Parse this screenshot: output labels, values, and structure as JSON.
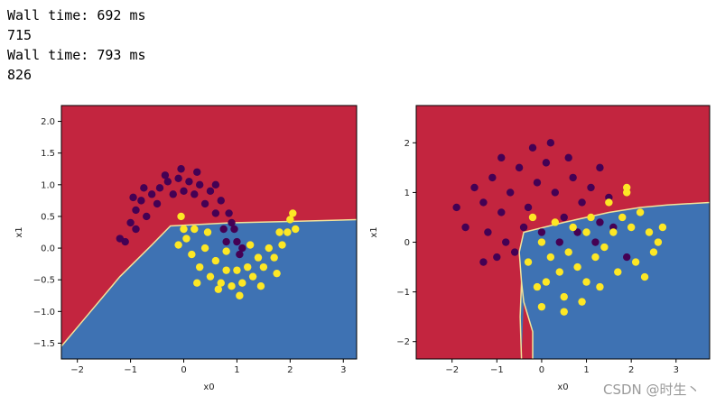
{
  "output": {
    "line1": "Wall time: 692 ms",
    "line2": "715",
    "line3": "Wall time: 793 ms",
    "line4": "826"
  },
  "watermark": "CSDN @时生丶",
  "colors": {
    "region_class0": "#c3253f",
    "region_class1": "#3e72b3",
    "boundary": "#f2e39a",
    "class0_points": "#440154",
    "class1_points": "#fde725"
  },
  "chart_data": [
    {
      "type": "scatter",
      "title": "",
      "xlabel": "x0",
      "ylabel": "x1",
      "xlim": [
        -2.3,
        3.25
      ],
      "ylim": [
        -1.75,
        2.25
      ],
      "xticks": [
        -2,
        -1,
        0,
        1,
        2,
        3
      ],
      "yticks": [
        -1.5,
        -1.0,
        -0.5,
        0.0,
        0.5,
        1.0,
        1.5,
        2.0
      ],
      "ytick_labels": [
        "-1.5",
        "-1.0",
        "-0.5",
        "0.0",
        "0.5",
        "1.0",
        "1.5",
        "2.0"
      ],
      "decision_boundary": [
        [
          -2.3,
          -1.55
        ],
        [
          -1.8,
          -1.05
        ],
        [
          -1.2,
          -0.45
        ],
        [
          -0.6,
          0.05
        ],
        [
          -0.25,
          0.35
        ],
        [
          0.9,
          0.4
        ],
        [
          2.0,
          0.42
        ],
        [
          3.25,
          0.45
        ]
      ],
      "series": [
        {
          "label": 0,
          "points": [
            [
              -1.1,
              0.1
            ],
            [
              -1.0,
              0.4
            ],
            [
              -0.9,
              0.6
            ],
            [
              -0.8,
              0.75
            ],
            [
              -0.6,
              0.85
            ],
            [
              -0.45,
              0.95
            ],
            [
              -0.3,
              1.05
            ],
            [
              -0.1,
              1.1
            ],
            [
              0.1,
              1.05
            ],
            [
              0.3,
              1.0
            ],
            [
              0.5,
              0.9
            ],
            [
              0.7,
              0.75
            ],
            [
              0.85,
              0.55
            ],
            [
              0.95,
              0.3
            ],
            [
              1.0,
              0.1
            ],
            [
              1.05,
              -0.1
            ],
            [
              -0.9,
              0.3
            ],
            [
              -0.7,
              0.5
            ],
            [
              -0.5,
              0.7
            ],
            [
              -0.2,
              0.85
            ],
            [
              0.0,
              0.9
            ],
            [
              0.2,
              0.85
            ],
            [
              0.4,
              0.7
            ],
            [
              0.6,
              0.55
            ],
            [
              0.75,
              0.3
            ],
            [
              0.8,
              0.1
            ],
            [
              -1.2,
              0.15
            ],
            [
              -0.75,
              0.95
            ],
            [
              -0.35,
              1.15
            ],
            [
              0.25,
              1.2
            ],
            [
              0.6,
              1.0
            ],
            [
              0.9,
              0.4
            ],
            [
              1.1,
              0.0
            ],
            [
              -0.95,
              0.8
            ],
            [
              -0.05,
              1.25
            ]
          ]
        },
        {
          "label": 1,
          "points": [
            [
              -0.05,
              0.5
            ],
            [
              0.05,
              0.15
            ],
            [
              0.15,
              -0.1
            ],
            [
              0.3,
              -0.3
            ],
            [
              0.5,
              -0.45
            ],
            [
              0.7,
              -0.55
            ],
            [
              0.9,
              -0.6
            ],
            [
              1.1,
              -0.55
            ],
            [
              1.3,
              -0.45
            ],
            [
              1.5,
              -0.3
            ],
            [
              1.7,
              -0.15
            ],
            [
              1.85,
              0.05
            ],
            [
              1.95,
              0.25
            ],
            [
              2.0,
              0.45
            ],
            [
              2.05,
              0.55
            ],
            [
              0.2,
              0.3
            ],
            [
              0.4,
              0.0
            ],
            [
              0.6,
              -0.2
            ],
            [
              0.8,
              -0.35
            ],
            [
              1.0,
              -0.35
            ],
            [
              1.2,
              -0.3
            ],
            [
              1.4,
              -0.15
            ],
            [
              1.6,
              0.0
            ],
            [
              1.8,
              0.25
            ],
            [
              0.0,
              0.3
            ],
            [
              0.25,
              -0.55
            ],
            [
              0.65,
              -0.65
            ],
            [
              1.05,
              -0.75
            ],
            [
              1.45,
              -0.6
            ],
            [
              1.75,
              -0.4
            ],
            [
              2.1,
              0.3
            ],
            [
              0.45,
              0.25
            ],
            [
              1.25,
              0.05
            ],
            [
              -0.1,
              0.05
            ],
            [
              0.8,
              -0.05
            ]
          ]
        }
      ]
    },
    {
      "type": "scatter",
      "title": "",
      "xlabel": "x0",
      "ylabel": "x1",
      "xlim": [
        -2.8,
        3.75
      ],
      "ylim": [
        -2.35,
        2.75
      ],
      "xticks": [
        -2,
        -1,
        0,
        1,
        2,
        3
      ],
      "yticks": [
        -2,
        -1,
        0,
        1,
        2
      ],
      "ytick_labels": [
        "-2",
        "-1",
        "0",
        "1",
        "2"
      ],
      "decision_boundary_a": [
        [
          -0.45,
          -2.35
        ],
        [
          -0.48,
          -1.5
        ],
        [
          -0.45,
          -0.8
        ],
        [
          -0.5,
          -0.2
        ],
        [
          -0.4,
          0.2
        ],
        [
          0.5,
          0.4
        ],
        [
          1.5,
          0.6
        ],
        [
          2.2,
          0.7
        ],
        [
          2.8,
          0.75
        ],
        [
          3.75,
          0.8
        ]
      ],
      "decision_boundary_b": [
        [
          -0.45,
          -0.8
        ],
        [
          -0.4,
          -1.2
        ],
        [
          -0.2,
          -1.8
        ],
        [
          -0.2,
          -2.35
        ]
      ],
      "series": [
        {
          "label": 0,
          "points": [
            [
              -1.5,
              1.1
            ],
            [
              -1.3,
              0.8
            ],
            [
              -1.1,
              1.3
            ],
            [
              -0.9,
              0.6
            ],
            [
              -0.7,
              1.0
            ],
            [
              -0.5,
              1.5
            ],
            [
              -0.3,
              0.7
            ],
            [
              -0.1,
              1.2
            ],
            [
              0.1,
              1.6
            ],
            [
              0.3,
              1.0
            ],
            [
              0.5,
              0.5
            ],
            [
              0.7,
              1.3
            ],
            [
              0.9,
              0.8
            ],
            [
              1.1,
              1.1
            ],
            [
              1.3,
              0.4
            ],
            [
              1.5,
              0.9
            ],
            [
              -1.7,
              0.3
            ],
            [
              -1.2,
              0.2
            ],
            [
              -0.8,
              0.0
            ],
            [
              -0.4,
              0.3
            ],
            [
              0.0,
              0.2
            ],
            [
              0.4,
              0.0
            ],
            [
              0.8,
              0.2
            ],
            [
              1.2,
              0.0
            ],
            [
              1.6,
              0.3
            ],
            [
              -1.0,
              -0.3
            ],
            [
              -0.6,
              -0.2
            ],
            [
              1.9,
              -0.3
            ],
            [
              -1.3,
              -0.4
            ],
            [
              0.2,
              2.0
            ],
            [
              -0.2,
              1.9
            ],
            [
              0.6,
              1.7
            ],
            [
              -0.9,
              1.7
            ],
            [
              1.3,
              1.5
            ],
            [
              -1.9,
              0.7
            ]
          ]
        },
        {
          "label": 1,
          "points": [
            [
              -0.2,
              0.5
            ],
            [
              0.0,
              0.0
            ],
            [
              0.2,
              -0.3
            ],
            [
              0.4,
              -0.6
            ],
            [
              0.6,
              -0.2
            ],
            [
              0.8,
              -0.5
            ],
            [
              1.0,
              -0.8
            ],
            [
              1.2,
              -0.3
            ],
            [
              1.4,
              -0.1
            ],
            [
              1.6,
              0.2
            ],
            [
              1.8,
              0.5
            ],
            [
              2.0,
              0.3
            ],
            [
              2.2,
              0.6
            ],
            [
              2.4,
              0.2
            ],
            [
              2.6,
              0.0
            ],
            [
              -0.3,
              -0.4
            ],
            [
              0.1,
              -0.8
            ],
            [
              0.5,
              -1.1
            ],
            [
              0.9,
              -1.2
            ],
            [
              1.3,
              -0.9
            ],
            [
              1.7,
              -0.6
            ],
            [
              2.1,
              -0.4
            ],
            [
              2.5,
              -0.2
            ],
            [
              0.3,
              0.4
            ],
            [
              0.7,
              0.3
            ],
            [
              1.1,
              0.5
            ],
            [
              1.5,
              0.8
            ],
            [
              1.9,
              1.1
            ],
            [
              0.0,
              -1.3
            ],
            [
              2.7,
              0.3
            ],
            [
              -0.1,
              -0.9
            ],
            [
              1.0,
              0.2
            ],
            [
              2.3,
              -0.7
            ],
            [
              0.5,
              -1.4
            ],
            [
              1.9,
              1.0
            ]
          ]
        }
      ]
    }
  ]
}
